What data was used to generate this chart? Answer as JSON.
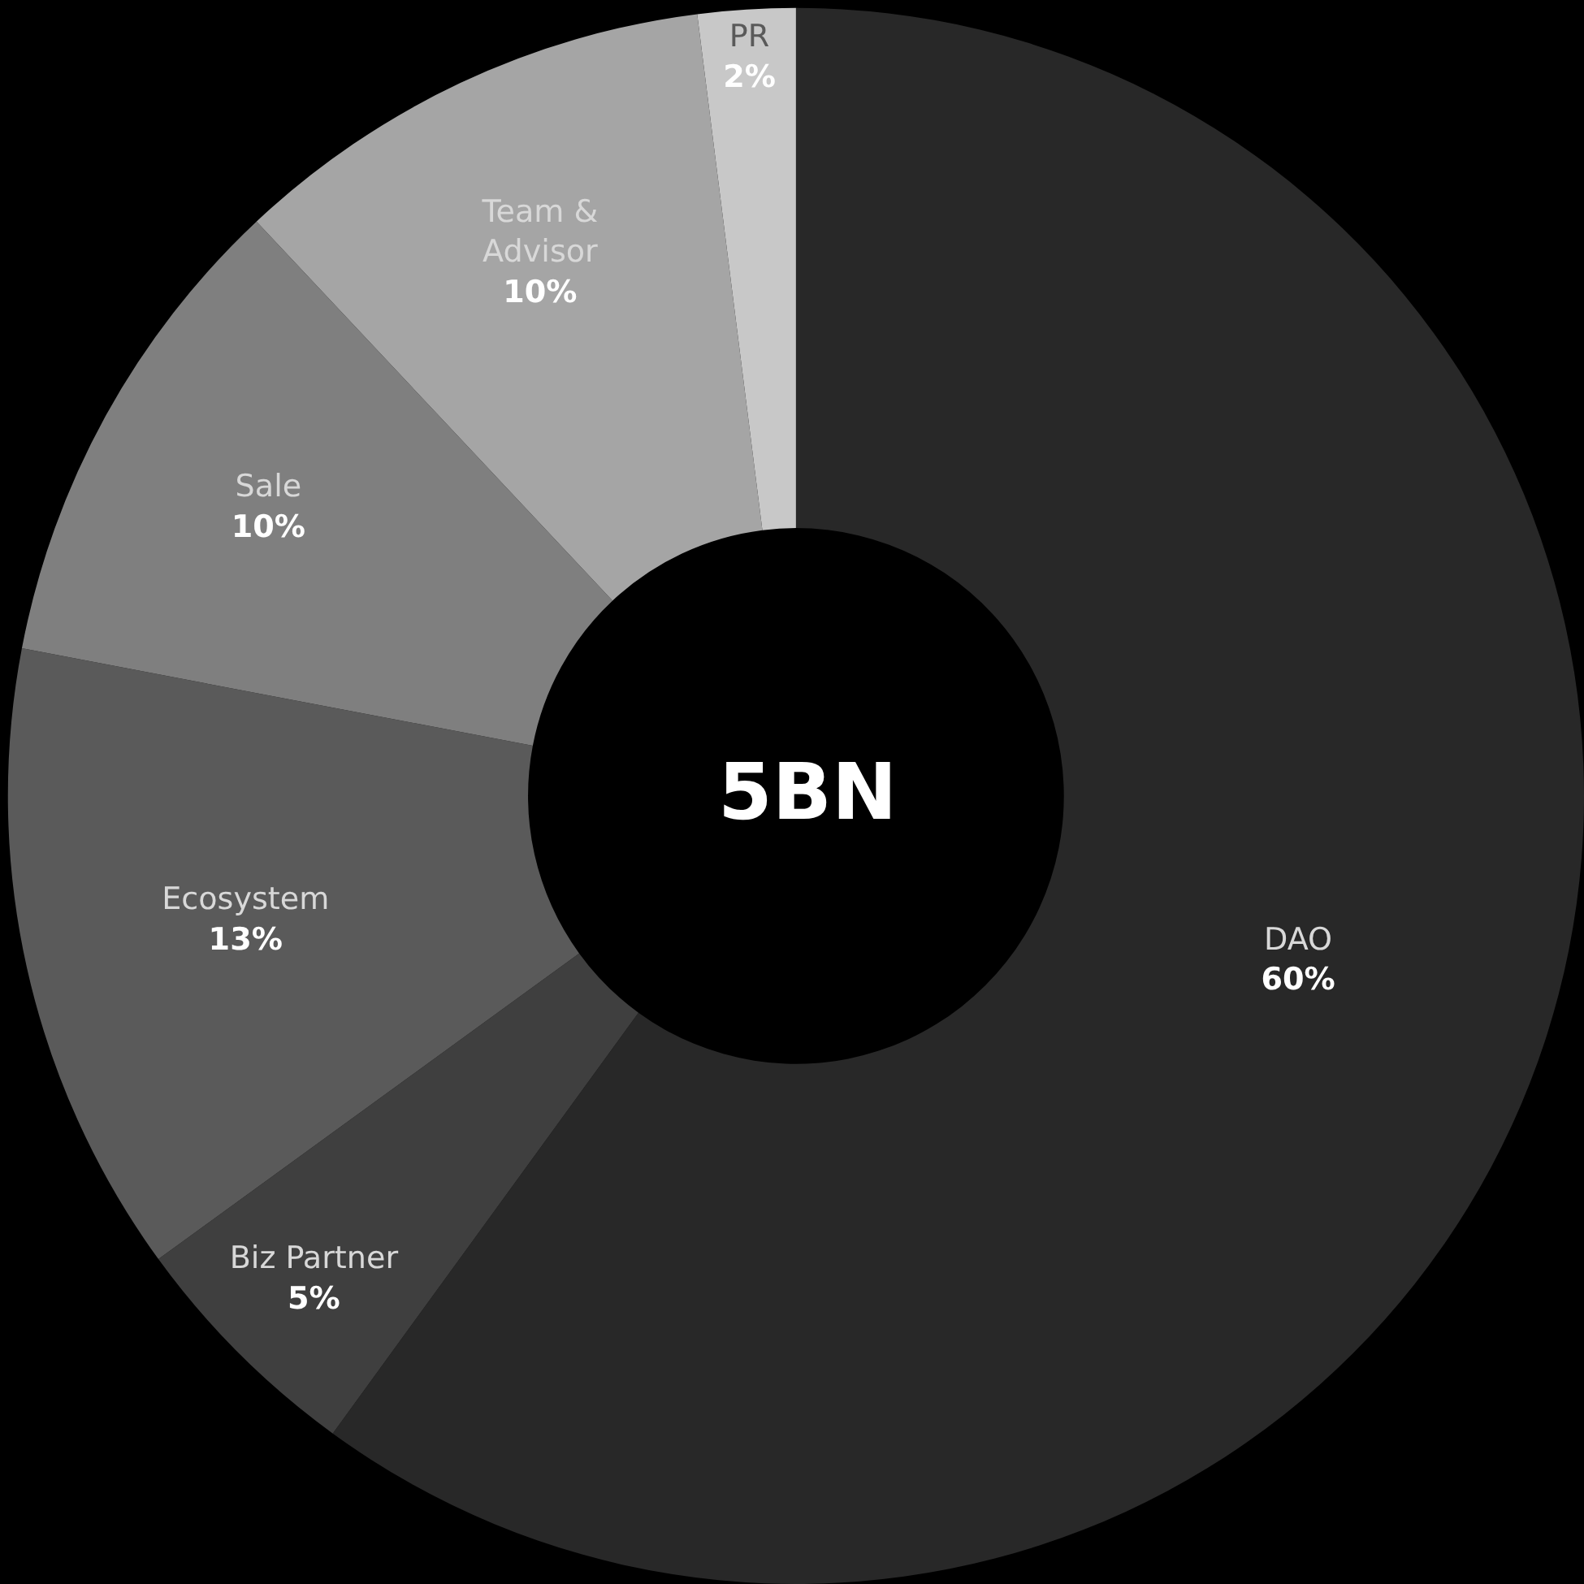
{
  "chart_data": {
    "type": "donut",
    "title": "5BN",
    "categories": [
      "DAO",
      "Biz Partner",
      "Ecosystem",
      "Sale",
      "Team & Advisor",
      "PR"
    ],
    "values": [
      60,
      5,
      13,
      10,
      10,
      2
    ],
    "value_labels": [
      "60%",
      "5%",
      "13%",
      "10%",
      "10%",
      "2%"
    ],
    "colors": [
      "#282828",
      "#3f3f3f",
      "#5a5a5a",
      "#7f7f7f",
      "#a5a5a5",
      "#c8c8c8"
    ],
    "legend": false
  }
}
